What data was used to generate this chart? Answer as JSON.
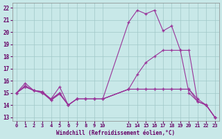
{
  "bg_color": "#c8e8e8",
  "grid_color": "#a0c8c8",
  "line_color": "#993399",
  "xlabel": "Windchill (Refroidissement éolien,°C)",
  "x_hours": [
    0,
    1,
    2,
    3,
    4,
    5,
    6,
    7,
    8,
    9,
    10,
    13,
    14,
    15,
    16,
    17,
    18,
    19,
    20,
    21,
    22,
    23
  ],
  "yticks": [
    13,
    14,
    15,
    16,
    17,
    18,
    19,
    20,
    21,
    22
  ],
  "ylim": [
    12.7,
    22.4
  ],
  "xlim": [
    -0.5,
    23.5
  ],
  "line1_y": [
    15.0,
    15.5,
    15.2,
    15.1,
    14.4,
    14.9,
    14.0,
    14.5,
    14.5,
    14.5,
    14.5,
    15.3,
    15.3,
    15.3,
    15.3,
    15.3,
    15.3,
    15.3,
    15.3,
    14.5,
    14.0,
    13.0
  ],
  "line2_y": [
    15.0,
    15.6,
    15.2,
    15.0,
    14.5,
    15.0,
    14.0,
    14.5,
    14.5,
    14.5,
    14.5,
    15.3,
    16.5,
    17.5,
    18.0,
    18.5,
    18.5,
    18.5,
    18.5,
    14.3,
    14.0,
    13.0
  ],
  "line3_y": [
    15.0,
    15.5,
    15.2,
    15.0,
    14.4,
    15.0,
    14.0,
    14.5,
    14.5,
    14.5,
    14.5,
    20.8,
    21.8,
    21.5,
    21.8,
    20.1,
    20.5,
    18.5,
    15.0,
    14.3,
    14.0,
    13.0
  ],
  "line4_y": [
    15.0,
    15.8,
    15.2,
    15.1,
    14.5,
    15.5,
    14.0,
    14.5,
    14.5,
    14.5,
    14.5,
    15.3,
    15.3,
    15.3,
    15.3,
    15.3,
    15.3,
    15.3,
    15.3,
    14.3,
    14.0,
    13.0
  ]
}
